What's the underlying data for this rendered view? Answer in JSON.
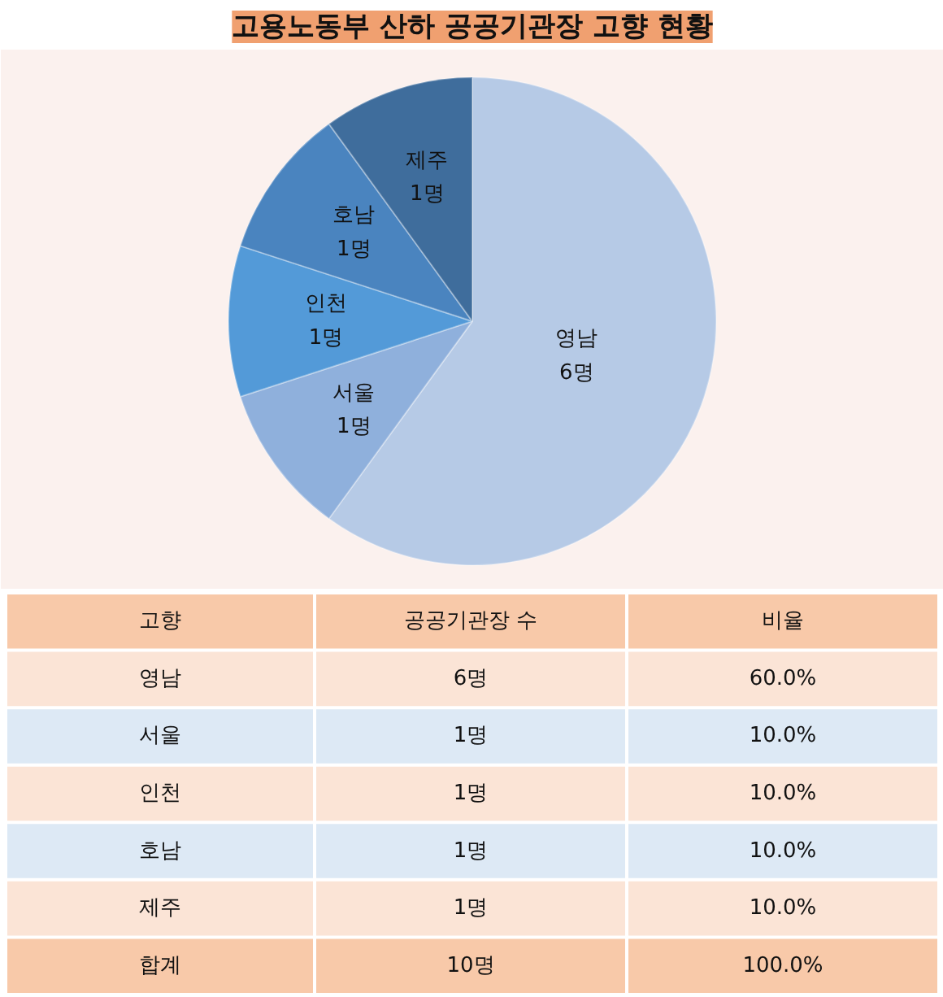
{
  "chart_data": [
    {
      "type": "pie",
      "title": "고용노동부 산하 공공기관장 고향 현황",
      "categories": [
        "영남",
        "서울",
        "인천",
        "호남",
        "제주"
      ],
      "values": [
        6,
        1,
        1,
        1,
        1
      ],
      "value_labels": [
        "6명",
        "1명",
        "1명",
        "1명",
        "1명"
      ],
      "colors": [
        "#b6cae6",
        "#8fb0dc",
        "#539ad8",
        "#4a84bf",
        "#3f6d9c"
      ]
    },
    {
      "type": "other",
      "annotations": [
        "고향",
        "공공기관장 수",
        "비율",
        "영남",
        "6명",
        "60.0%",
        "서울",
        "1명",
        "10.0%",
        "인천",
        "1명",
        "10.0%",
        "호남",
        "1명",
        "10.0%",
        "제주",
        "1명",
        "10.0%",
        "합계",
        "10명",
        "100.0%"
      ]
    }
  ]
}
